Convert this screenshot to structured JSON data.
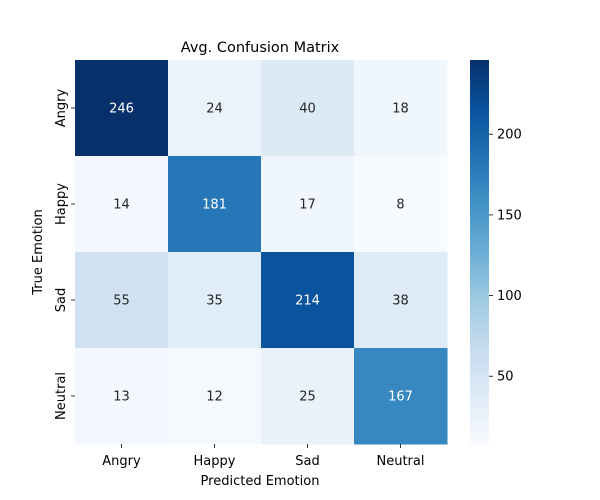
{
  "chart_data": {
    "type": "heatmap",
    "title": "Avg. Confusion Matrix",
    "xlabel": "Predicted Emotion",
    "ylabel": "True Emotion",
    "x_categories": [
      "Angry",
      "Happy",
      "Sad",
      "Neutral"
    ],
    "y_categories": [
      "Angry",
      "Happy",
      "Sad",
      "Neutral"
    ],
    "values": [
      [
        246,
        24,
        40,
        18
      ],
      [
        14,
        181,
        17,
        8
      ],
      [
        55,
        35,
        214,
        38
      ],
      [
        13,
        12,
        25,
        167
      ]
    ],
    "colorbar": {
      "colormap": "Blues",
      "range": [
        8,
        246
      ],
      "ticks": [
        50,
        100,
        150,
        200
      ]
    }
  }
}
